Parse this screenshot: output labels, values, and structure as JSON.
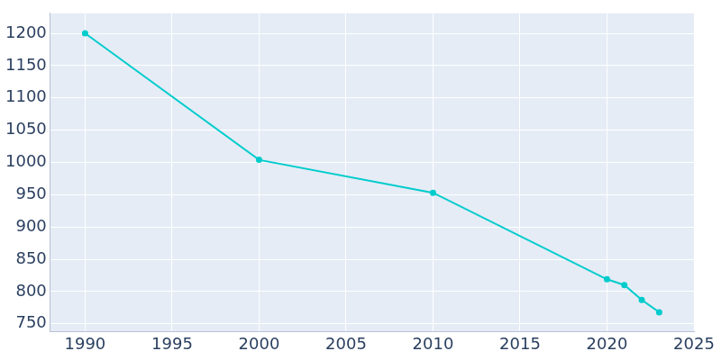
{
  "chart_data": {
    "type": "line",
    "x": [
      1990,
      2000,
      2010,
      2020,
      2021,
      2022,
      2023
    ],
    "values": [
      1200,
      1004,
      953,
      819,
      810,
      787,
      768
    ],
    "color": "#00cccc",
    "marker": "circle",
    "xlim": [
      1988,
      2025
    ],
    "xticks": [
      1990,
      1995,
      2000,
      2005,
      2010,
      2015,
      2020,
      2025
    ],
    "ylim": [
      738,
      1231
    ],
    "yticks": [
      750,
      800,
      850,
      900,
      950,
      1000,
      1050,
      1100,
      1150,
      1200
    ],
    "grid": true
  }
}
